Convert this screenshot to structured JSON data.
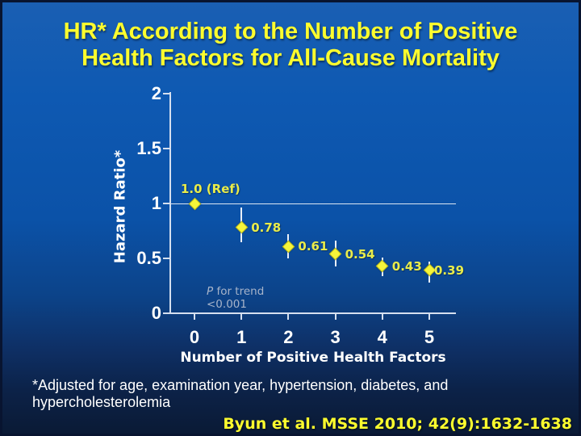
{
  "slide": {
    "title_lines": [
      "HR* According to the Number of Positive",
      "Health Factors for All-Cause Mortality"
    ],
    "footnote_lines": [
      "*Adjusted for age, examination year, hypertension, diabetes, and",
      "hypercholesterolemia"
    ],
    "citation": "Byun et al. MSSE 2010; 42(9):1632-1638"
  },
  "colors": {
    "title_yellow": "#fdfd2e",
    "marker_yellow": "#f6f53a",
    "marker_edge": "#b9b81f",
    "data_label_yellow": "#e9ec4a",
    "axis_white": "#d5dfef",
    "error_bar": "#e9eff8",
    "ref_line": "#dce6f2",
    "trend_note": "#a7b4ca",
    "text_white": "#ffffff",
    "bg_top_blue": "#1a5fb3",
    "bg_bottom_navy": "#0a1a35"
  },
  "chart_data": {
    "type": "scatter",
    "title": "",
    "xlabel": "Number of Positive Health Factors",
    "ylabel": "Hazard Ratio*",
    "x": [
      0,
      1,
      2,
      3,
      4,
      5
    ],
    "values": [
      1.0,
      0.78,
      0.61,
      0.54,
      0.43,
      0.39
    ],
    "labels": [
      "1.0 (Ref)",
      "0.78",
      "0.61",
      "0.54",
      "0.43",
      "0.39"
    ],
    "ci_low": [
      null,
      0.65,
      0.5,
      0.43,
      0.34,
      0.28
    ],
    "ci_high": [
      null,
      0.96,
      0.72,
      0.66,
      0.51,
      0.47
    ],
    "ylim": [
      0,
      2
    ],
    "yticks": [
      0,
      0.5,
      1,
      1.5,
      2
    ],
    "ytick_labels": [
      "0",
      "0.5",
      "1",
      "1.5",
      "2"
    ],
    "xtick_labels": [
      "0",
      "1",
      "2",
      "3",
      "4",
      "5"
    ],
    "ref_line_y": 1,
    "marker": "diamond",
    "grid": false,
    "legend": null,
    "annotation_lines": [
      "P for trend",
      "<0.001"
    ]
  }
}
